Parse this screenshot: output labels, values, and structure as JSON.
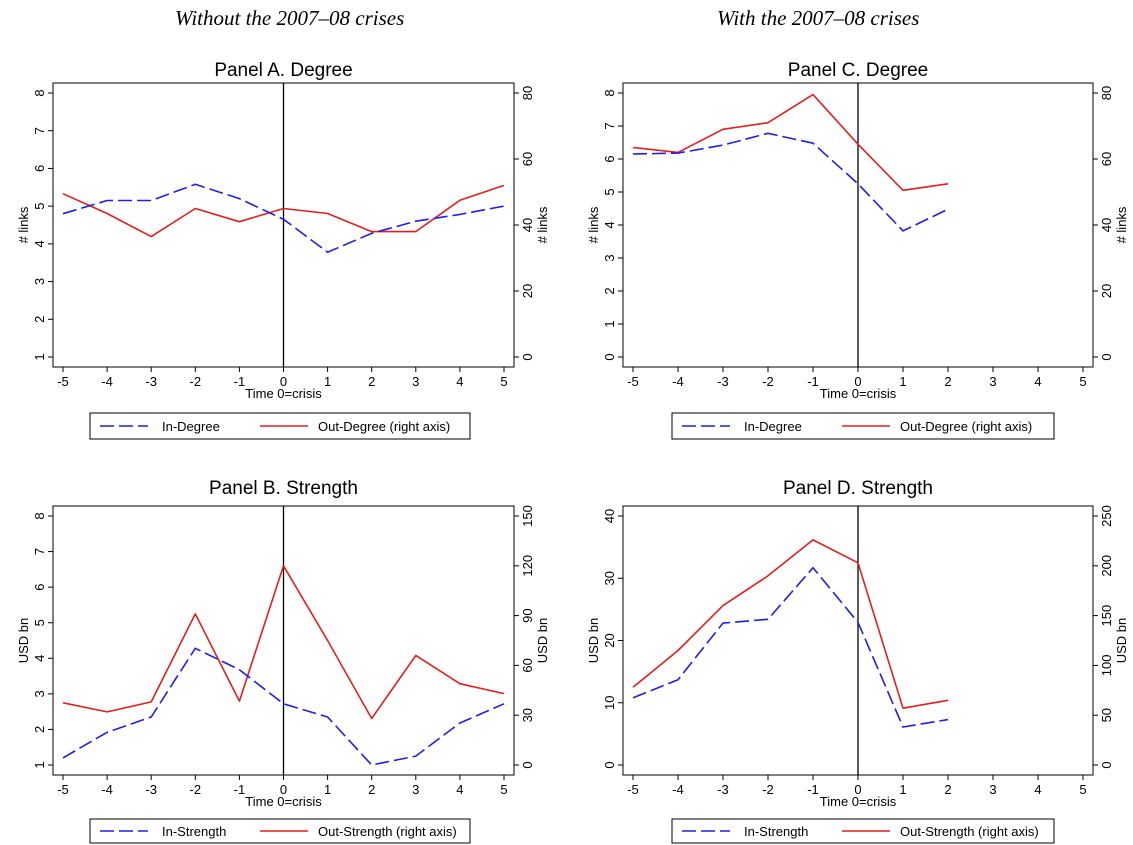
{
  "column_titles": [
    "Without the 2007–08 crises",
    "With the 2007–08 crises"
  ],
  "colors": {
    "in_series": "#1f1fe0",
    "out_series": "#e01f1f",
    "axis": "#000000",
    "crisis_line": "#000000"
  },
  "chart_data": [
    {
      "type": "line",
      "title": "Panel A. Degree",
      "xlabel": "Time 0=crisis",
      "ylabel": "# links",
      "ylabel_right": "# links",
      "x_ticks": [
        -5,
        -4,
        -3,
        -2,
        -1,
        0,
        1,
        2,
        3,
        4,
        5
      ],
      "xlim": [
        -5,
        5
      ],
      "ylim_left": [
        1,
        8
      ],
      "yticks_left": [
        1,
        2,
        3,
        4,
        5,
        6,
        7,
        8
      ],
      "ylim_right": [
        0,
        80
      ],
      "yticks_right": [
        0,
        20,
        40,
        60,
        80
      ],
      "grid": false,
      "legend_placement": "bottom",
      "series": [
        {
          "name": "In-Degree",
          "axis": "left",
          "style": "dashed",
          "x": [
            -5,
            -4,
            -3,
            -2,
            -1,
            0,
            1,
            2,
            3,
            4,
            5
          ],
          "values": [
            4.8,
            5.15,
            5.15,
            5.58,
            5.2,
            4.65,
            3.78,
            4.28,
            4.6,
            4.78,
            5.0
          ]
        },
        {
          "name": "Out-Degree (right axis)",
          "axis": "right",
          "style": "solid",
          "x": [
            -5,
            -4,
            -3,
            -2,
            -1,
            0,
            1,
            2,
            3,
            4,
            5
          ],
          "values": [
            49.5,
            43.5,
            36.5,
            45.0,
            41.0,
            45.0,
            43.5,
            38.0,
            38.0,
            47.5,
            52.0
          ]
        }
      ]
    },
    {
      "type": "line",
      "title": "Panel C. Degree",
      "xlabel": "Time 0=crisis",
      "ylabel": "# links",
      "ylabel_right": "# links",
      "x_ticks": [
        -5,
        -4,
        -3,
        -2,
        -1,
        0,
        1,
        2,
        3,
        4,
        5
      ],
      "xlim": [
        -5,
        5
      ],
      "ylim_left": [
        0,
        8
      ],
      "yticks_left": [
        0,
        1,
        2,
        3,
        4,
        5,
        6,
        7,
        8
      ],
      "ylim_right": [
        0,
        80
      ],
      "yticks_right": [
        0,
        20,
        40,
        60,
        80
      ],
      "grid": false,
      "legend_placement": "bottom",
      "series": [
        {
          "name": "In-Degree",
          "axis": "left",
          "style": "dashed",
          "x": [
            -5,
            -4,
            -3,
            -2,
            -1,
            0,
            1,
            2
          ],
          "values": [
            6.15,
            6.18,
            6.42,
            6.78,
            6.48,
            5.25,
            3.82,
            4.48
          ]
        },
        {
          "name": "Out-Degree (right axis)",
          "axis": "right",
          "style": "solid",
          "x": [
            -5,
            -4,
            -3,
            -2,
            -1,
            0,
            1,
            2
          ],
          "values": [
            63.5,
            62.0,
            69.0,
            71.0,
            79.5,
            64.5,
            50.5,
            52.5
          ]
        }
      ]
    },
    {
      "type": "line",
      "title": "Panel B. Strength",
      "xlabel": "Time 0=crisis",
      "ylabel": "USD bn",
      "ylabel_right": "USD bn",
      "x_ticks": [
        -5,
        -4,
        -3,
        -2,
        -1,
        0,
        1,
        2,
        3,
        4,
        5
      ],
      "xlim": [
        -5,
        5
      ],
      "ylim_left": [
        1,
        8
      ],
      "yticks_left": [
        1,
        2,
        3,
        4,
        5,
        6,
        7,
        8
      ],
      "ylim_right": [
        0,
        150
      ],
      "yticks_right": [
        0,
        30,
        60,
        90,
        120,
        150
      ],
      "grid": false,
      "legend_placement": "bottom",
      "series": [
        {
          "name": "In-Strength",
          "axis": "left",
          "style": "dashed",
          "x": [
            -5,
            -4,
            -3,
            -2,
            -1,
            0,
            1,
            2,
            3,
            4,
            5
          ],
          "values": [
            1.2,
            1.92,
            2.35,
            4.28,
            3.68,
            2.72,
            2.35,
            1.0,
            1.25,
            2.18,
            2.72
          ]
        },
        {
          "name": "Out-Strength (right axis)",
          "axis": "right",
          "style": "solid",
          "x": [
            -5,
            -4,
            -3,
            -2,
            -1,
            0,
            1,
            2,
            3,
            4,
            5
          ],
          "values": [
            37.5,
            32.0,
            38.0,
            91.0,
            38.5,
            120.0,
            75.0,
            28.0,
            66.0,
            49.0,
            43.0
          ]
        }
      ]
    },
    {
      "type": "line",
      "title": "Panel D. Strength",
      "xlabel": "Time 0=crisis",
      "ylabel": "USD bn",
      "ylabel_right": "USD bn",
      "x_ticks": [
        -5,
        -4,
        -3,
        -2,
        -1,
        0,
        1,
        2,
        3,
        4,
        5
      ],
      "xlim": [
        -5,
        5
      ],
      "ylim_left": [
        0,
        40
      ],
      "yticks_left": [
        0,
        10,
        20,
        30,
        40
      ],
      "ylim_right": [
        0,
        250
      ],
      "yticks_right": [
        0,
        50,
        100,
        150,
        200,
        250
      ],
      "grid": false,
      "legend_placement": "bottom",
      "series": [
        {
          "name": "In-Strength",
          "axis": "left",
          "style": "dashed",
          "x": [
            -5,
            -4,
            -3,
            -2,
            -1,
            0,
            1,
            2
          ],
          "values": [
            10.8,
            13.7,
            22.8,
            23.4,
            31.7,
            22.9,
            6.1,
            7.3
          ]
        },
        {
          "name": "Out-Strength (right axis)",
          "axis": "right",
          "style": "solid",
          "x": [
            -5,
            -4,
            -3,
            -2,
            -1,
            0,
            1,
            2
          ],
          "values": [
            78,
            115,
            160,
            190,
            226,
            203,
            57,
            65
          ]
        }
      ]
    }
  ]
}
